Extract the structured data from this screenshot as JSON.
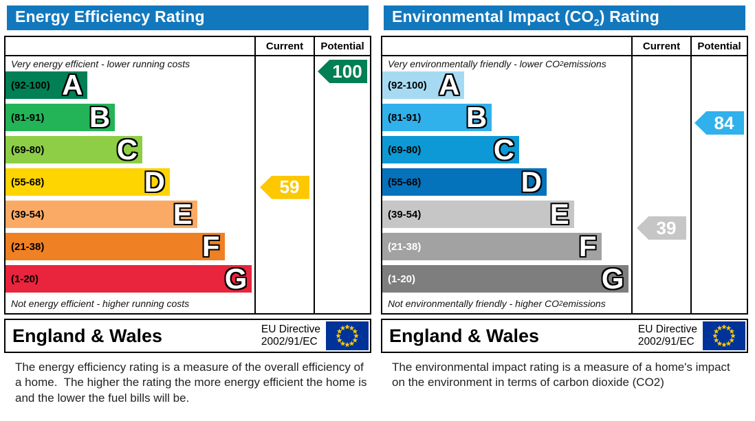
{
  "theme": {
    "header_blue": "#1278be",
    "eu_flag": {
      "field": "#003399",
      "stars": "#ffcc00"
    }
  },
  "panels": [
    {
      "title": {
        "pre": "Energy Efficiency Rating",
        "sub": "",
        "post": ""
      },
      "columns": {
        "current": "Current",
        "potential": "Potential"
      },
      "top_caption": {
        "pre": "Very energy efficient - lower running costs",
        "sub": "",
        "post": ""
      },
      "bottom_caption": {
        "pre": "Not energy efficient - higher running costs",
        "sub": "",
        "post": ""
      },
      "bands": [
        {
          "letter": "A",
          "range": "(92-100)",
          "min": 92,
          "max": 100,
          "color": "#008054",
          "text": "#000000",
          "width_pct": 33
        },
        {
          "letter": "B",
          "range": "(81-91)",
          "min": 81,
          "max": 91,
          "color": "#23b458",
          "text": "#000000",
          "width_pct": 44
        },
        {
          "letter": "C",
          "range": "(69-80)",
          "min": 69,
          "max": 80,
          "color": "#8dce46",
          "text": "#000000",
          "width_pct": 55
        },
        {
          "letter": "D",
          "range": "(55-68)",
          "min": 55,
          "max": 68,
          "color": "#fed401",
          "text": "#000000",
          "width_pct": 66
        },
        {
          "letter": "E",
          "range": "(39-54)",
          "min": 39,
          "max": 54,
          "color": "#fbaa65",
          "text": "#000000",
          "width_pct": 77
        },
        {
          "letter": "F",
          "range": "(21-38)",
          "min": 21,
          "max": 38,
          "color": "#ef8023",
          "text": "#000000",
          "width_pct": 88
        },
        {
          "letter": "G",
          "range": "(1-20)",
          "min": 1,
          "max": 20,
          "color": "#e9243d",
          "text": "#000000",
          "width_pct": 99
        }
      ],
      "current": {
        "value": 59,
        "color": "#fdc800"
      },
      "potential": {
        "value": 100,
        "color": "#008054"
      },
      "footer": {
        "region": "England & Wales",
        "directive_line1": "EU Directive",
        "directive_line2": "2002/91/EC"
      },
      "description": "The energy efficiency rating is a measure of the overall efficiency of a home.  The higher the rating the more energy efficient the home is and the lower the fuel bills will be."
    },
    {
      "title": {
        "pre": "Environmental Impact (CO",
        "sub": "2",
        "post": ") Rating"
      },
      "columns": {
        "current": "Current",
        "potential": "Potential"
      },
      "top_caption": {
        "pre": "Very environmentally friendly - lower CO",
        "sub": "2",
        "post": " emissions"
      },
      "bottom_caption": {
        "pre": "Not environmentally friendly - higher CO",
        "sub": "2",
        "post": " emissions"
      },
      "bands": [
        {
          "letter": "A",
          "range": "(92-100)",
          "min": 92,
          "max": 100,
          "color": "#a6daf2",
          "text": "#000000",
          "width_pct": 33
        },
        {
          "letter": "B",
          "range": "(81-91)",
          "min": 81,
          "max": 91,
          "color": "#30b1ec",
          "text": "#000000",
          "width_pct": 44
        },
        {
          "letter": "C",
          "range": "(69-80)",
          "min": 69,
          "max": 80,
          "color": "#0c99d5",
          "text": "#000000",
          "width_pct": 55
        },
        {
          "letter": "D",
          "range": "(55-68)",
          "min": 55,
          "max": 68,
          "color": "#0572bc",
          "text": "#000000",
          "width_pct": 66
        },
        {
          "letter": "E",
          "range": "(39-54)",
          "min": 39,
          "max": 54,
          "color": "#c6c6c6",
          "text": "#000000",
          "width_pct": 77
        },
        {
          "letter": "F",
          "range": "(21-38)",
          "min": 21,
          "max": 38,
          "color": "#a2a2a2",
          "text": "#ffffff",
          "width_pct": 88
        },
        {
          "letter": "G",
          "range": "(1-20)",
          "min": 1,
          "max": 20,
          "color": "#7e7e7e",
          "text": "#ffffff",
          "width_pct": 99
        }
      ],
      "current": {
        "value": 39,
        "color": "#c6c6c6"
      },
      "potential": {
        "value": 84,
        "color": "#30b1ec"
      },
      "footer": {
        "region": "England & Wales",
        "directive_line1": "EU Directive",
        "directive_line2": "2002/91/EC"
      },
      "description": "The environmental impact rating is a measure of a home's impact on the environment in terms of carbon dioxide (CO2)"
    }
  ],
  "chart_data": [
    {
      "type": "bar",
      "title": "Energy Efficiency Rating",
      "categories": [
        "A (92-100)",
        "B (81-91)",
        "C (69-80)",
        "D (55-68)",
        "E (39-54)",
        "F (21-38)",
        "G (1-20)"
      ],
      "values": [
        33,
        44,
        55,
        66,
        77,
        88,
        99
      ],
      "series": [
        {
          "name": "Current",
          "value": 59,
          "band": "D"
        },
        {
          "name": "Potential",
          "value": 100,
          "band": "A"
        }
      ],
      "xlabel": "",
      "ylabel": "",
      "annotations": [
        "Very energy efficient - lower running costs",
        "Not energy efficient - higher running costs",
        "England & Wales",
        "EU Directive 2002/91/EC"
      ]
    },
    {
      "type": "bar",
      "title": "Environmental Impact (CO2) Rating",
      "categories": [
        "A (92-100)",
        "B (81-91)",
        "C (69-80)",
        "D (55-68)",
        "E (39-54)",
        "F (21-38)",
        "G (1-20)"
      ],
      "values": [
        33,
        44,
        55,
        66,
        77,
        88,
        99
      ],
      "series": [
        {
          "name": "Current",
          "value": 39,
          "band": "E"
        },
        {
          "name": "Potential",
          "value": 84,
          "band": "B"
        }
      ],
      "xlabel": "",
      "ylabel": "",
      "annotations": [
        "Very environmentally friendly - lower CO2 emissions",
        "Not environmentally friendly - higher CO2 emissions",
        "England & Wales",
        "EU Directive 2002/91/EC"
      ]
    }
  ]
}
